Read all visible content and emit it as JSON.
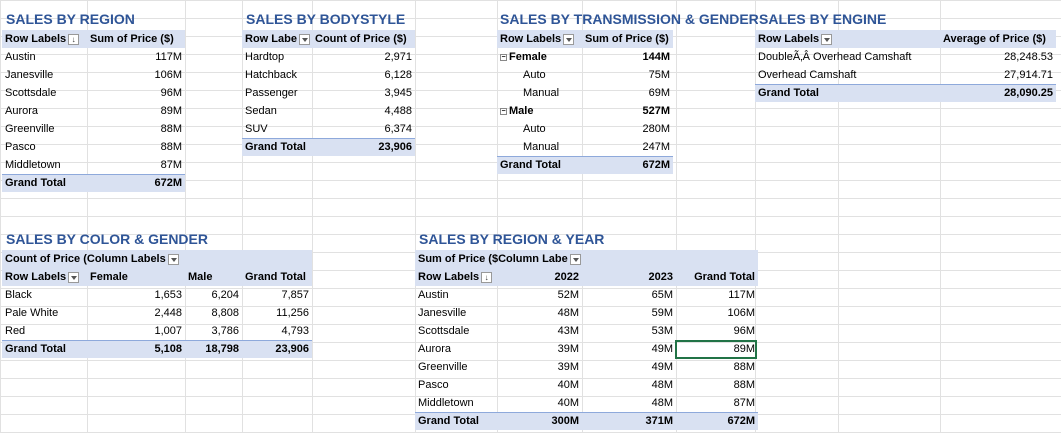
{
  "region": {
    "title": "SALES BY REGION",
    "col1": "Row Labels",
    "col2": "Sum of Price ($)",
    "rows": [
      {
        "label": "Austin",
        "value": "117M"
      },
      {
        "label": "Janesville",
        "value": "106M"
      },
      {
        "label": "Scottsdale",
        "value": "96M"
      },
      {
        "label": "Aurora",
        "value": "89M"
      },
      {
        "label": "Greenville",
        "value": "88M"
      },
      {
        "label": "Pasco",
        "value": "88M"
      },
      {
        "label": "Middletown",
        "value": "87M"
      }
    ],
    "total_label": "Grand Total",
    "total_value": "672M"
  },
  "bodystyle": {
    "title": "SALES BY BODYSTYLE",
    "col1": "Row Labe",
    "col2": "Count of Price ($)",
    "rows": [
      {
        "label": "Hardtop",
        "value": "2,971"
      },
      {
        "label": "Hatchback",
        "value": "6,128"
      },
      {
        "label": "Passenger",
        "value": "3,945"
      },
      {
        "label": "Sedan",
        "value": "4,488"
      },
      {
        "label": "SUV",
        "value": "6,374"
      }
    ],
    "total_label": "Grand Total",
    "total_value": "23,906"
  },
  "transmission": {
    "title": "SALES BY TRANSMISSION & GENDER",
    "col1": "Row Labels",
    "col2": "Sum of Price ($)",
    "rows": [
      {
        "label": "Female",
        "value": "144M",
        "group": true
      },
      {
        "label": "Auto",
        "value": "75M",
        "group": false
      },
      {
        "label": "Manual",
        "value": "69M",
        "group": false
      },
      {
        "label": "Male",
        "value": "527M",
        "group": true
      },
      {
        "label": "Auto",
        "value": "280M",
        "group": false
      },
      {
        "label": "Manual",
        "value": "247M",
        "group": false
      }
    ],
    "total_label": "Grand Total",
    "total_value": "672M"
  },
  "engine": {
    "title": "SALES BY ENGINE",
    "col1": "Row Labels",
    "col2": "Average of Price ($)",
    "rows": [
      {
        "label": "DoubleÃ‚Â Overhead Camshaft",
        "value": "28,248.53"
      },
      {
        "label": "Overhead Camshaft",
        "value": "27,914.71"
      }
    ],
    "total_label": "Grand Total",
    "total_value": "28,090.25"
  },
  "color": {
    "title": "SALES BY COLOR & GENDER",
    "corner": "Count of Price (",
    "col_labels": "Column Labels",
    "row_labels": "Row Labels",
    "headers": [
      "Female",
      "Male",
      "Grand Total"
    ],
    "rows": [
      {
        "label": "Black",
        "values": [
          "1,653",
          "6,204",
          "7,857"
        ]
      },
      {
        "label": "Pale White",
        "values": [
          "2,448",
          "8,808",
          "11,256"
        ]
      },
      {
        "label": "Red",
        "values": [
          "1,007",
          "3,786",
          "4,793"
        ]
      }
    ],
    "total_label": "Grand Total",
    "total_values": [
      "5,108",
      "18,798",
      "23,906"
    ]
  },
  "regionyear": {
    "title": "SALES BY REGION & YEAR",
    "corner": "Sum of Price ($",
    "col_labels": "Column Labe",
    "row_labels": "Row Labels",
    "headers": [
      "2022",
      "2023",
      "Grand Total"
    ],
    "rows": [
      {
        "label": "Austin",
        "values": [
          "52M",
          "65M",
          "117M"
        ]
      },
      {
        "label": "Janesville",
        "values": [
          "48M",
          "59M",
          "106M"
        ]
      },
      {
        "label": "Scottsdale",
        "values": [
          "43M",
          "53M",
          "96M"
        ]
      },
      {
        "label": "Aurora",
        "values": [
          "39M",
          "49M",
          "89M"
        ]
      },
      {
        "label": "Greenville",
        "values": [
          "39M",
          "49M",
          "88M"
        ]
      },
      {
        "label": "Pasco",
        "values": [
          "40M",
          "48M",
          "88M"
        ]
      },
      {
        "label": "Middletown",
        "values": [
          "40M",
          "48M",
          "87M"
        ]
      }
    ],
    "total_label": "Grand Total",
    "total_values": [
      "300M",
      "371M",
      "672M"
    ]
  }
}
